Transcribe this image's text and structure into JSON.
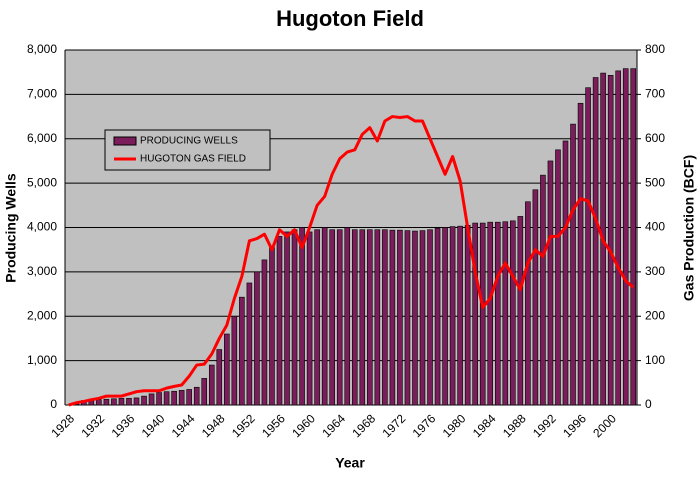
{
  "chart_data": {
    "type": "bar_line",
    "title": "Hugoton Field",
    "x_label": "Year",
    "y_label": "Producing Wells",
    "y2_label": "Gas Production (BCF)",
    "categories": [
      "1928",
      null,
      null,
      null,
      "1932",
      null,
      null,
      null,
      "1936",
      null,
      null,
      null,
      "1940",
      null,
      null,
      null,
      "1944",
      null,
      null,
      null,
      "1948",
      null,
      null,
      null,
      "1952",
      null,
      null,
      null,
      "1956",
      null,
      null,
      null,
      "1960",
      null,
      null,
      null,
      "1964",
      null,
      null,
      null,
      "1968",
      null,
      null,
      null,
      "1972",
      null,
      null,
      null,
      "1976",
      null,
      null,
      null,
      "1980",
      null,
      null,
      null,
      "1984",
      null,
      null,
      null,
      "1988",
      null,
      null,
      null,
      "1992",
      null,
      null,
      null,
      "1996",
      null,
      null,
      null,
      "2000",
      null,
      null,
      null
    ],
    "series": [
      {
        "name": "PRODUCING WELLS",
        "kind": "bar",
        "color": "#7b1d5a",
        "values": [
          0,
          20,
          100,
          100,
          120,
          130,
          140,
          150,
          150,
          160,
          200,
          250,
          280,
          300,
          310,
          330,
          350,
          400,
          600,
          900,
          1250,
          1600,
          2000,
          2430,
          2750,
          3000,
          3270,
          3550,
          3800,
          3900,
          3950,
          4000,
          3900,
          3950,
          4000,
          3950,
          3950,
          4000,
          3950,
          3950,
          3950,
          3950,
          3950,
          3940,
          3940,
          3930,
          3920,
          3930,
          3950,
          3980,
          4000,
          4020,
          4030,
          4050,
          4100,
          4100,
          4120,
          4120,
          4130,
          4150,
          4250,
          4580,
          4850,
          5180,
          5500,
          5750,
          5950,
          6330,
          6800,
          7150,
          7380,
          7480,
          7430,
          7530,
          7580,
          7580
        ]
      },
      {
        "name": "HUGOTON GAS FIELD",
        "kind": "line",
        "axis": "y2",
        "color": "#ff0000",
        "values": [
          0,
          5,
          8,
          12,
          15,
          20,
          20,
          20,
          25,
          30,
          32,
          32,
          32,
          38,
          42,
          45,
          65,
          90,
          92,
          115,
          150,
          180,
          240,
          290,
          370,
          375,
          385,
          350,
          395,
          380,
          395,
          355,
          400,
          450,
          470,
          520,
          555,
          570,
          575,
          610,
          625,
          595,
          640,
          650,
          648,
          650,
          640,
          640,
          600,
          560,
          520,
          560,
          505,
          400,
          300,
          220,
          240,
          290,
          320,
          290,
          260,
          320,
          350,
          335,
          380,
          380,
          400,
          440,
          465,
          460,
          420,
          370,
          345,
          310,
          280,
          265
        ]
      }
    ],
    "ylim": [
      0,
      8000
    ],
    "yticks": [
      0,
      {
        "value": 1000,
        "label": "1,000"
      },
      {
        "value": 2000,
        "label": "2,000"
      },
      {
        "value": 3000,
        "label": "3,000"
      },
      {
        "value": 4000,
        "label": "4,000"
      },
      {
        "value": 5000,
        "label": "5,000"
      },
      {
        "value": 6000,
        "label": "6,000"
      },
      {
        "value": 7000,
        "label": "7,000"
      },
      {
        "value": 8000,
        "label": "8,000"
      }
    ],
    "y2lim": [
      0,
      800
    ],
    "y2ticks": [
      0,
      100,
      200,
      300,
      400,
      500,
      600,
      700,
      800
    ],
    "grid": true
  }
}
